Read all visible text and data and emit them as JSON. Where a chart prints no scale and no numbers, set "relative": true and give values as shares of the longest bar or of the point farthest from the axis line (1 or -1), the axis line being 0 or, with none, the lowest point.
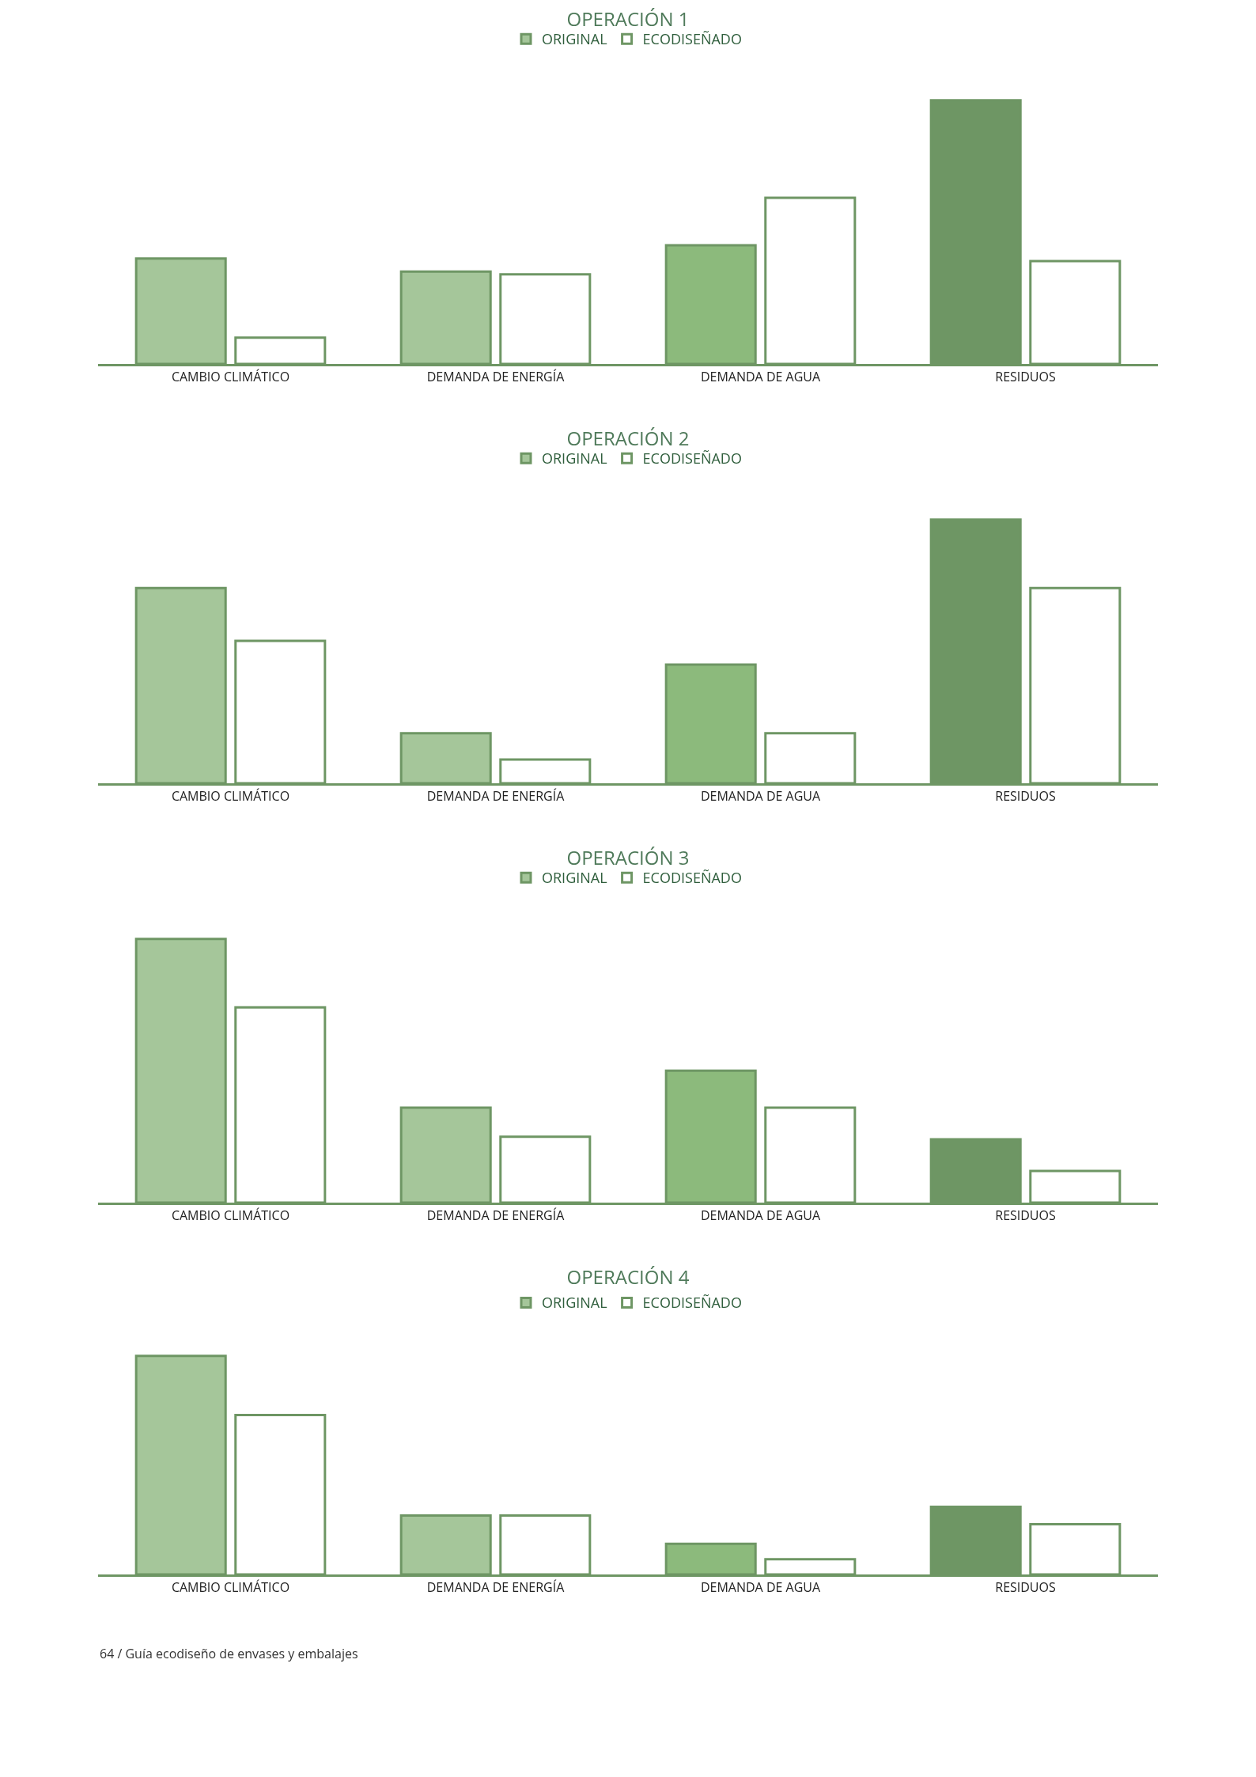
{
  "chart_data": [
    {
      "type": "bar",
      "title": "OPERACIÓN 1",
      "relative": true,
      "legend": "top",
      "categories": [
        "CAMBIO CLIMÁTICO",
        "DEMANDA DE ENERGÍA",
        "DEMANDA DE AGUA",
        "RESIDUOS"
      ],
      "series": [
        {
          "name": "ORIGINAL",
          "colors": [
            "#a5c69a",
            "#a5c69a",
            "#8cba7c",
            "#6e9664"
          ],
          "values": [
            0.4,
            0.35,
            0.45,
            1
          ]
        },
        {
          "name": "ECODISEÑADO",
          "colors": [
            "#ffffff",
            "#ffffff",
            "#ffffff",
            "#ffffff"
          ],
          "values": [
            0.1,
            0.34,
            0.63,
            0.39
          ]
        }
      ]
    },
    {
      "type": "bar",
      "title": "OPERACIÓN 2",
      "relative": true,
      "legend": "top",
      "categories": [
        "CAMBIO CLIMÁTICO",
        "DEMANDA DE ENERGÍA",
        "DEMANDA DE AGUA",
        "RESIDUOS"
      ],
      "series": [
        {
          "name": "ORIGINAL",
          "colors": [
            "#a5c69a",
            "#a5c69a",
            "#8cba7c",
            "#6e9664"
          ],
          "values": [
            0.74,
            0.19,
            0.45,
            1
          ]
        },
        {
          "name": "ECODISEÑADO",
          "colors": [
            "#ffffff",
            "#ffffff",
            "#ffffff",
            "#ffffff"
          ],
          "values": [
            0.54,
            0.09,
            0.19,
            0.74
          ]
        }
      ]
    },
    {
      "type": "bar",
      "title": "OPERACIÓN 3",
      "relative": true,
      "legend": "top",
      "categories": [
        "CAMBIO CLIMÁTICO",
        "DEMANDA DE ENERGÍA",
        "DEMANDA DE AGUA",
        "RESIDUOS"
      ],
      "series": [
        {
          "name": "ORIGINAL",
          "colors": [
            "#a5c69a",
            "#a5c69a",
            "#8cba7c",
            "#6e9664"
          ],
          "values": [
            1,
            0.36,
            0.5,
            0.24
          ]
        },
        {
          "name": "ECODISEÑADO",
          "colors": [
            "#ffffff",
            "#ffffff",
            "#ffffff",
            "#ffffff"
          ],
          "values": [
            0.74,
            0.25,
            0.36,
            0.12
          ]
        }
      ]
    },
    {
      "type": "bar",
      "title": "OPERACIÓN 4",
      "relative": true,
      "legend": "top",
      "categories": [
        "CAMBIO CLIMÁTICO",
        "DEMANDA DE ENERGÍA",
        "DEMANDA DE AGUA",
        "RESIDUOS"
      ],
      "annotations": [
        "64 / Guía ecodiseño de envases y embalajes"
      ],
      "series": [
        {
          "name": "ORIGINAL",
          "colors": [
            "#a5c69a",
            "#a5c69a",
            "#8cba7c",
            "#6e9664"
          ],
          "values": [
            1,
            0.27,
            0.14,
            0.31
          ]
        },
        {
          "name": "ECODISEÑADO",
          "colors": [
            "#ffffff",
            "#ffffff",
            "#ffffff",
            "#ffffff"
          ],
          "values": [
            0.73,
            0.27,
            0.07,
            0.23
          ]
        }
      ]
    }
  ]
}
